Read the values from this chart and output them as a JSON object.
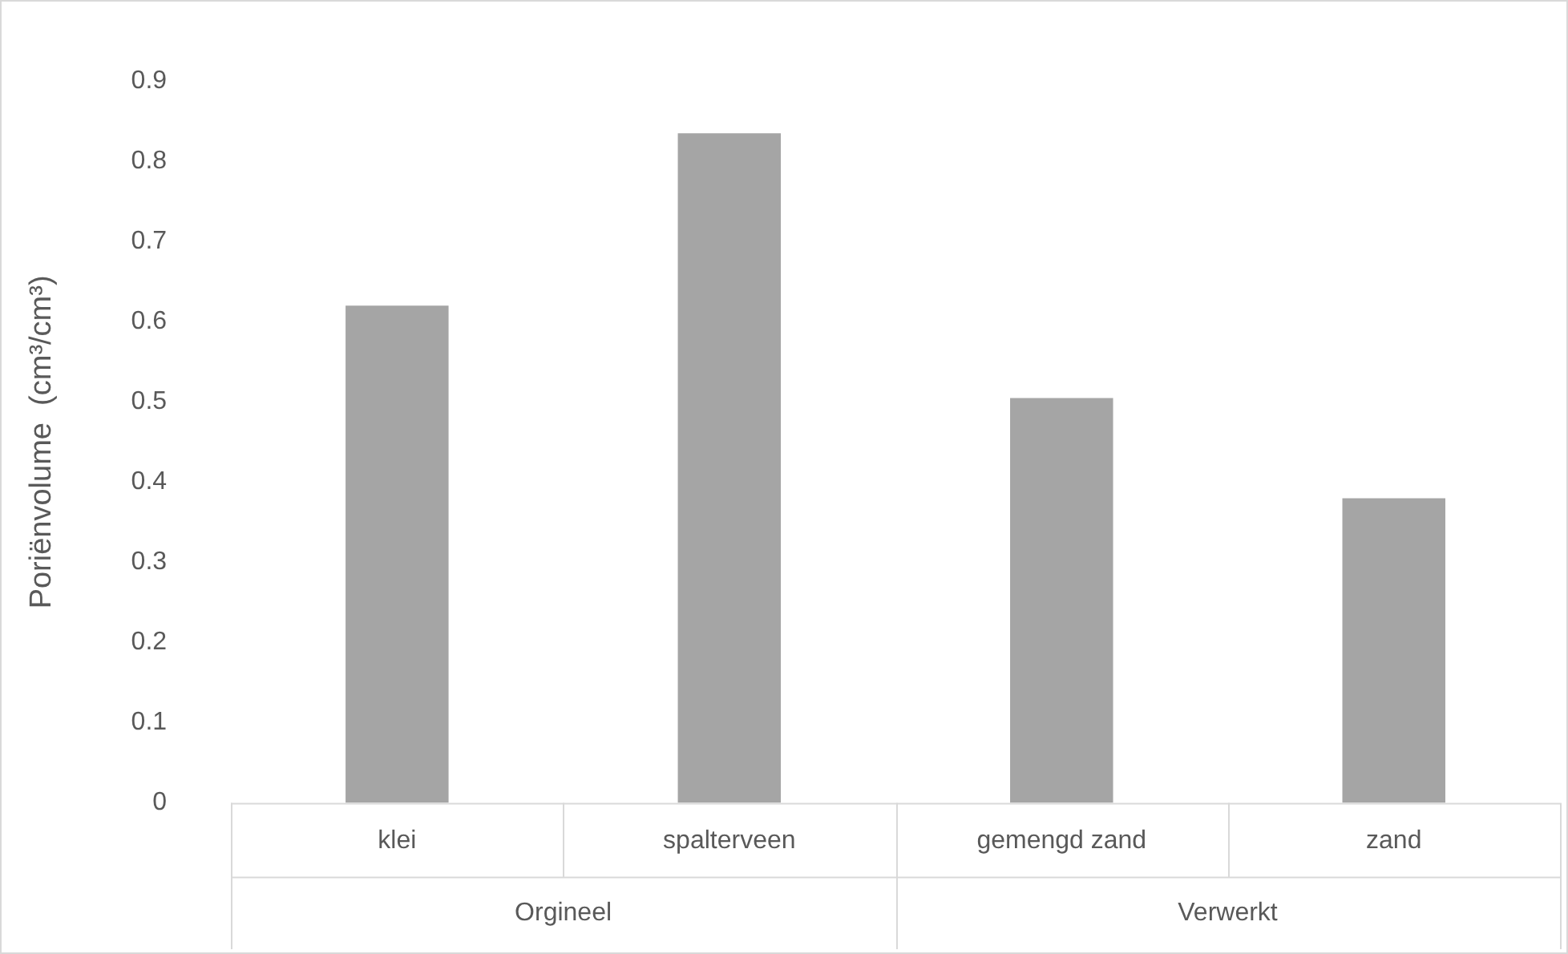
{
  "chart_data": {
    "type": "bar",
    "ylabel": "Poriënvolume  (cm³/cm³)",
    "categories": [
      "klei",
      "spalterveen",
      "gemengd zand",
      "zand"
    ],
    "values": [
      0.62,
      0.835,
      0.505,
      0.38
    ],
    "color": "#a5a5a5",
    "ylim": [
      0,
      0.9
    ],
    "yticks": [
      0,
      0.1,
      0.2,
      0.3,
      0.4,
      0.5,
      0.6,
      0.7,
      0.8,
      0.9
    ],
    "grid": false,
    "annotations": [
      "Orgineel",
      "Verwerkt"
    ]
  }
}
